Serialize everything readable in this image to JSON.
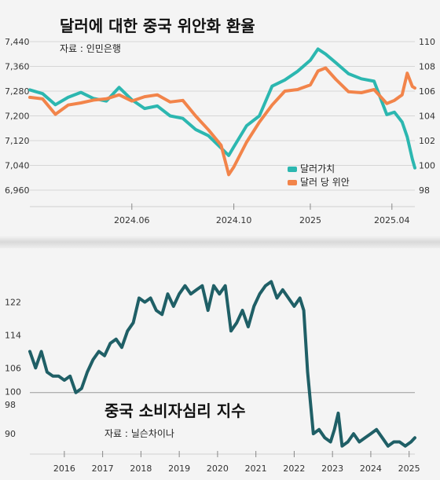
{
  "chart_data": [
    {
      "type": "line",
      "title": "달러에 대한 중국 위안화 환율",
      "source": "자료 : 인민은행",
      "x_ticks": [
        "2024.06",
        "2024.10",
        "2025",
        "2025.04"
      ],
      "x_tick_positions": [
        5,
        9,
        12,
        15.2
      ],
      "x_range": [
        1,
        16.1
      ],
      "y_left": {
        "ticks": [
          "7,440",
          "7,360",
          "7,280",
          "7,200",
          "7,120",
          "7,040",
          "6,960"
        ],
        "range": [
          6960,
          7440
        ]
      },
      "y_right": {
        "ticks": [
          "110",
          "108",
          "106",
          "104",
          "102",
          "100",
          "98"
        ],
        "range": [
          98,
          110
        ]
      },
      "legend_position": "center-right",
      "grid": true,
      "series": [
        {
          "name": "달러가치",
          "axis": "right",
          "color": "#2cb7b0",
          "x": [
            1,
            1.5,
            2,
            2.5,
            3,
            3.5,
            4,
            4.5,
            5,
            5.5,
            6,
            6.5,
            7,
            7.5,
            8,
            8.5,
            8.8,
            9,
            9.5,
            10,
            10.5,
            11,
            11.5,
            12,
            12.3,
            12.6,
            13,
            13.5,
            14,
            14.5,
            15,
            15.3,
            15.6,
            15.8,
            16,
            16.1
          ],
          "values": [
            106.1,
            105.8,
            104.9,
            105.5,
            105.9,
            105.4,
            105.2,
            106.3,
            105.3,
            104.6,
            104.8,
            104.0,
            103.8,
            102.9,
            102.4,
            101.4,
            100.8,
            101.5,
            103.2,
            104.0,
            106.4,
            106.9,
            107.6,
            108.5,
            109.4,
            109.0,
            108.3,
            107.4,
            107.0,
            106.8,
            104.1,
            104.3,
            103.5,
            102.3,
            100.5,
            99.8
          ]
        },
        {
          "name": "달러 당 위안",
          "axis": "left",
          "color": "#f2844a",
          "x": [
            1,
            1.5,
            2,
            2.5,
            3,
            3.5,
            4,
            4.5,
            5,
            5.5,
            6,
            6.5,
            7,
            7.5,
            8,
            8.5,
            8.8,
            9,
            9.5,
            10,
            10.5,
            11,
            11.5,
            12,
            12.3,
            12.6,
            13,
            13.5,
            14,
            14.5,
            15,
            15.3,
            15.6,
            15.8,
            16,
            16.1
          ],
          "values": [
            7260,
            7255,
            7205,
            7235,
            7242,
            7251,
            7255,
            7268,
            7248,
            7262,
            7268,
            7245,
            7250,
            7200,
            7155,
            7105,
            7010,
            7035,
            7115,
            7180,
            7235,
            7280,
            7285,
            7300,
            7345,
            7355,
            7318,
            7278,
            7275,
            7285,
            7240,
            7250,
            7268,
            7338,
            7295,
            7290
          ]
        }
      ]
    },
    {
      "type": "line",
      "title": "중국 소비자심리 지수",
      "source": "자료 : 닐슨차이나",
      "x_ticks": [
        "2016",
        "2017",
        "2018",
        "2019",
        "2020",
        "2021",
        "2022",
        "2023",
        "2024",
        "2025"
      ],
      "x_range": [
        2015.1,
        2025.15
      ],
      "y_ticks": [
        "122",
        "114",
        "106",
        "100",
        "98",
        "90"
      ],
      "y_range": [
        86,
        129
      ],
      "reference_line": 100,
      "grid": false,
      "series": [
        {
          "color": "#1f5f66",
          "x": [
            2015.1,
            2015.25,
            2015.4,
            2015.55,
            2015.7,
            2015.85,
            2016.0,
            2016.15,
            2016.3,
            2016.45,
            2016.6,
            2016.75,
            2016.9,
            2017.05,
            2017.2,
            2017.35,
            2017.5,
            2017.65,
            2017.8,
            2017.95,
            2018.1,
            2018.25,
            2018.4,
            2018.55,
            2018.7,
            2018.85,
            2019.0,
            2019.15,
            2019.3,
            2019.45,
            2019.6,
            2019.75,
            2019.9,
            2020.05,
            2020.2,
            2020.35,
            2020.5,
            2020.65,
            2020.8,
            2020.95,
            2021.1,
            2021.25,
            2021.4,
            2021.55,
            2021.7,
            2021.85,
            2022.0,
            2022.15,
            2022.25,
            2022.35,
            2022.5,
            2022.65,
            2022.8,
            2022.95,
            2023.05,
            2023.15,
            2023.25,
            2023.4,
            2023.55,
            2023.7,
            2023.85,
            2024.0,
            2024.15,
            2024.3,
            2024.45,
            2024.6,
            2024.75,
            2024.9,
            2025.05,
            2025.15
          ],
          "values": [
            110,
            106,
            110,
            105,
            104,
            104,
            103,
            104,
            100,
            101,
            105,
            108,
            110,
            109,
            112,
            113,
            111,
            115,
            117,
            123,
            122,
            123,
            120,
            119,
            124,
            121,
            124,
            126,
            124,
            125,
            126,
            120,
            126,
            124,
            126,
            115,
            117,
            120,
            116,
            121,
            124,
            126,
            127,
            123,
            125,
            123,
            121,
            123,
            120,
            105,
            90,
            91,
            89,
            88,
            91,
            95,
            87,
            88,
            90,
            88,
            89,
            90,
            91,
            89,
            87,
            88,
            88,
            87,
            88,
            89
          ]
        }
      ]
    }
  ]
}
